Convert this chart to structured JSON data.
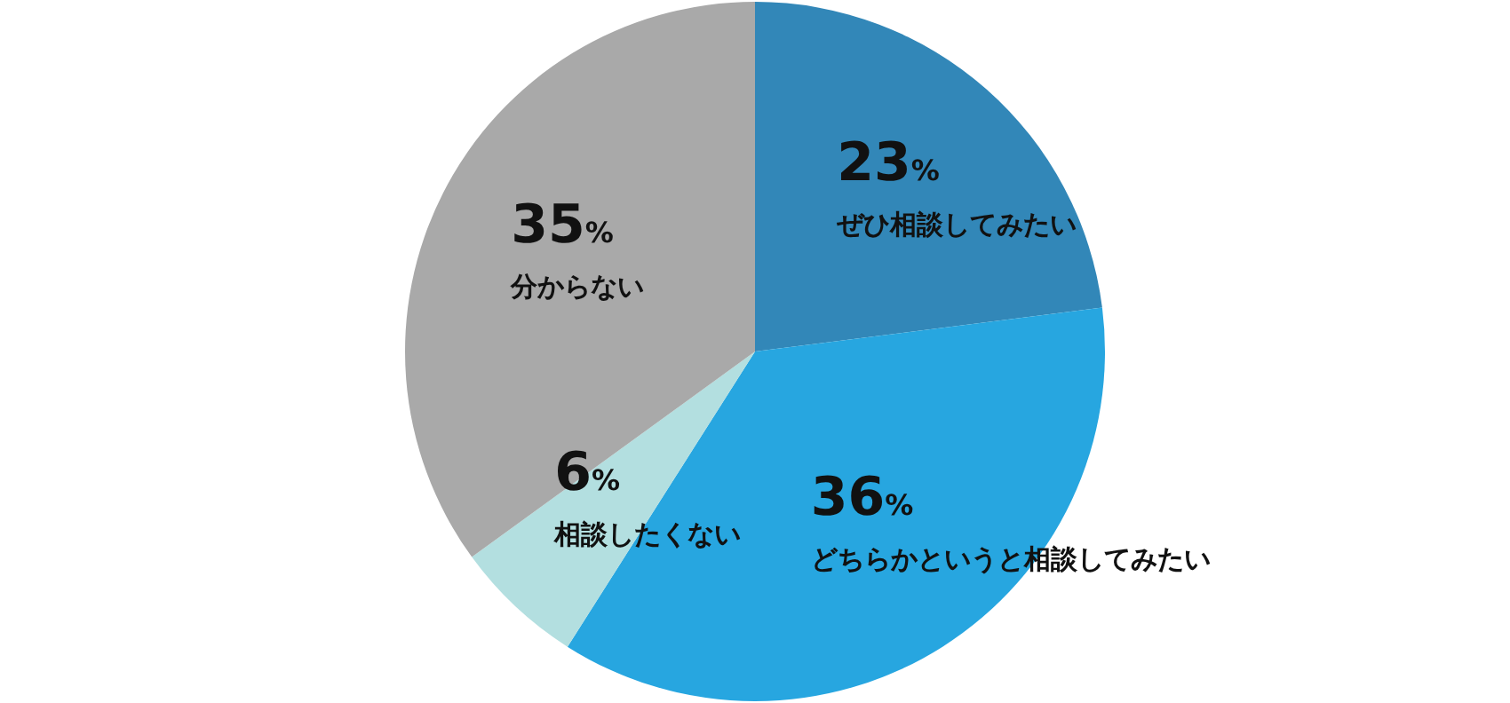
{
  "chart_data": {
    "type": "pie",
    "categories": [
      "ぜひ相談してみたい",
      "どちらかというと相談してみたい",
      "相談したくない",
      "分からない"
    ],
    "values": [
      23,
      36,
      6,
      35
    ],
    "value_labels": [
      "23%",
      "36%",
      "6%",
      "35%"
    ],
    "colors": [
      "#3287b8",
      "#27a6e0",
      "#b3dfe0",
      "#a9a9a9"
    ]
  }
}
